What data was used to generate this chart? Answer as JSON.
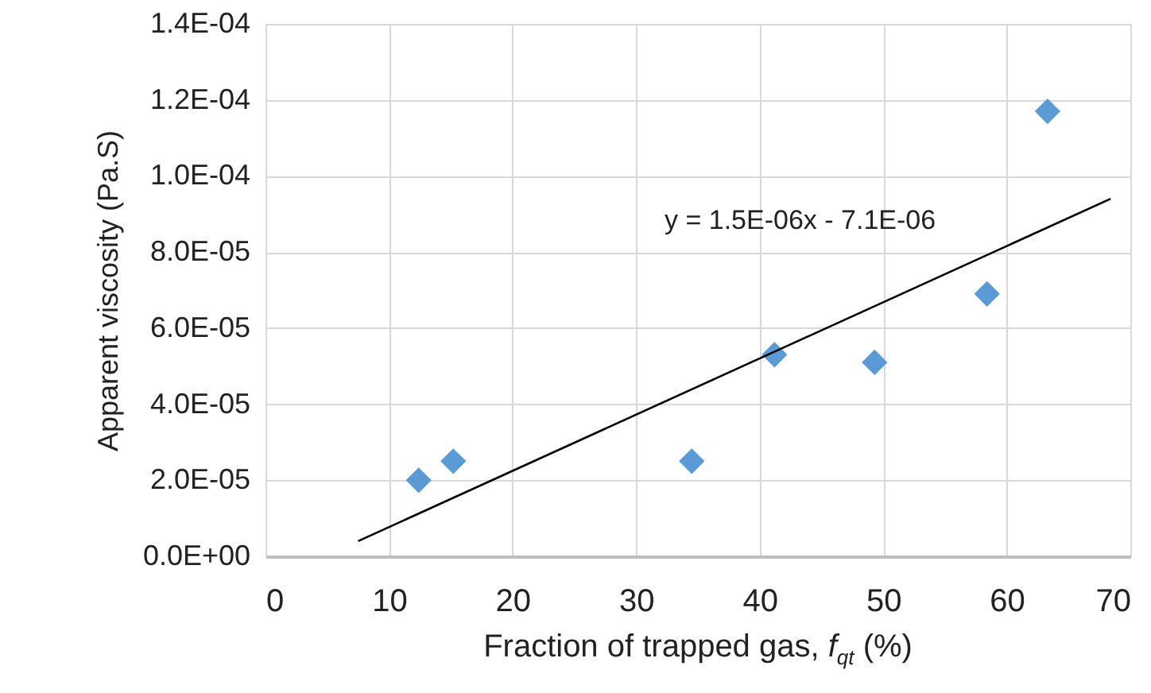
{
  "chart_data": {
    "type": "scatter",
    "xlabel": "Fraction of trapped gas, f$_{qt}$ (%)",
    "ylabel": "Apparent viscosity (Pa.S)",
    "x": [
      12.4,
      15.2,
      34.5,
      41.2,
      49.3,
      58.4,
      63.3
    ],
    "series": [
      {
        "color": "#5b9bd5",
        "marker": "diamond",
        "values": [
          2e-05,
          2.5e-05,
          2.5e-05,
          5.3e-05,
          5.1e-05,
          6.9e-05,
          0.000117
        ]
      },
      {
        "type": "line",
        "color": "#000000",
        "marker": "none",
        "x": [
          7.5,
          68.4
        ],
        "values": [
          4e-06,
          9.4e-05
        ]
      }
    ],
    "annotations": [
      "y = 1.5E-06x - 7.1E-06"
    ],
    "xlim": [
      0,
      70
    ],
    "xticks": [
      0,
      10,
      20,
      30,
      40,
      50,
      60,
      70
    ],
    "ylim": [
      0,
      0.00014
    ],
    "yticks": [
      {
        "value": 0,
        "label": "0.0E+00"
      },
      {
        "value": 2e-05,
        "label": "2.0E-05"
      },
      {
        "value": 4e-05,
        "label": "4.0E-05"
      },
      {
        "value": 6e-05,
        "label": "6.0E-05"
      },
      {
        "value": 8e-05,
        "label": "8.0E-05"
      },
      {
        "value": 0.0001,
        "label": "1.0E-04"
      },
      {
        "value": 0.00012,
        "label": "1.2E-04"
      },
      {
        "value": 0.00014,
        "label": "1.4E-04"
      }
    ],
    "grid": true
  }
}
